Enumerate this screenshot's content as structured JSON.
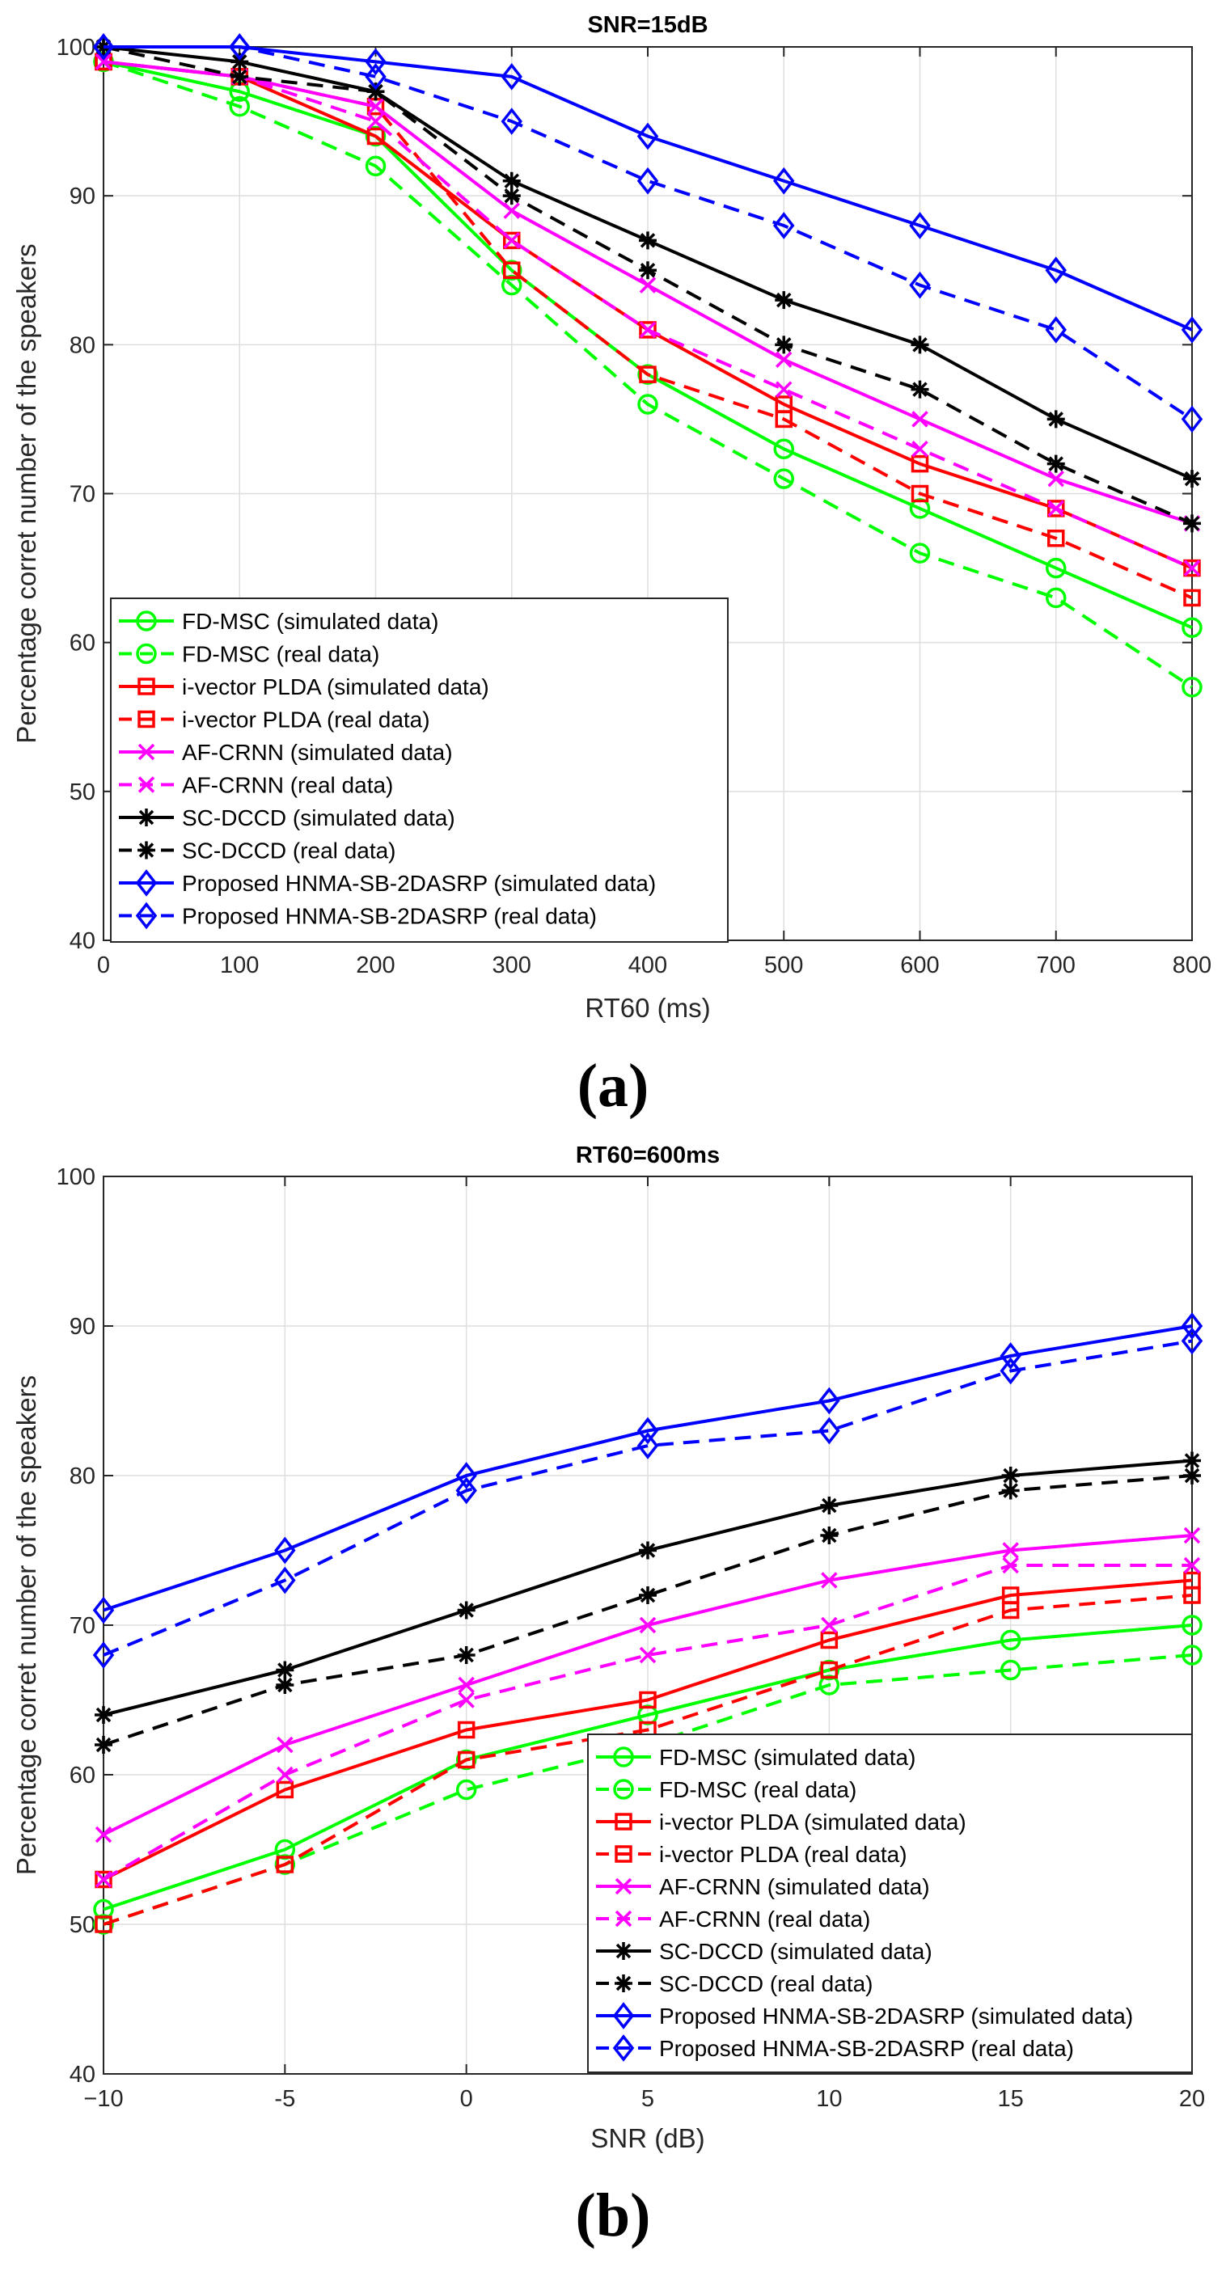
{
  "chart_data": [
    {
      "type": "line",
      "title": "SNR=15dB",
      "xlabel": "RT60 (ms)",
      "ylabel": "Percentage corret number of the speakers",
      "caption": "(a)",
      "xlim": [
        0,
        800
      ],
      "ylim": [
        40,
        100
      ],
      "grid": true,
      "legend_position": "bottom-left",
      "xticks": [
        0,
        100,
        200,
        300,
        400,
        500,
        600,
        700,
        800
      ],
      "xtick_labels": [
        "0",
        "100",
        "200",
        "300",
        "400",
        "500",
        "600",
        "700",
        "800"
      ],
      "yticks": [
        40,
        50,
        60,
        70,
        80,
        90,
        100
      ],
      "ytick_labels": [
        "40",
        "50",
        "60",
        "70",
        "80",
        "90",
        "100"
      ],
      "x": [
        0,
        100,
        200,
        300,
        400,
        500,
        600,
        700,
        800
      ],
      "series": [
        {
          "name": "FD-MSC (simulated data)",
          "color": "#00ff00",
          "dash": "solid",
          "marker": "circle",
          "values": [
            99,
            97,
            94,
            85,
            78,
            73,
            69,
            65,
            61
          ]
        },
        {
          "name": "FD-MSC (real data)",
          "color": "#00ff00",
          "dash": "dashed",
          "marker": "circle",
          "values": [
            99,
            96,
            92,
            84,
            76,
            71,
            66,
            63,
            57
          ]
        },
        {
          "name": "i-vector PLDA (simulated data)",
          "color": "#ff0000",
          "dash": "solid",
          "marker": "square",
          "values": [
            99,
            98,
            94,
            87,
            81,
            76,
            72,
            69,
            65
          ]
        },
        {
          "name": "i-vector PLDA (real data)",
          "color": "#ff0000",
          "dash": "dashed",
          "marker": "square",
          "values": [
            99,
            98,
            96,
            85,
            78,
            75,
            70,
            67,
            63
          ]
        },
        {
          "name": "AF-CRNN (simulated data)",
          "color": "#ff00ff",
          "dash": "solid",
          "marker": "x",
          "values": [
            99,
            98,
            96,
            89,
            84,
            79,
            75,
            71,
            68
          ]
        },
        {
          "name": "AF-CRNN (real data)",
          "color": "#ff00ff",
          "dash": "dashed",
          "marker": "x",
          "values": [
            99,
            98,
            95,
            87,
            81,
            77,
            73,
            69,
            65
          ]
        },
        {
          "name": "SC-DCCD (simulated data)",
          "color": "#000000",
          "dash": "solid",
          "marker": "star",
          "values": [
            100,
            99,
            97,
            91,
            87,
            83,
            80,
            75,
            71
          ]
        },
        {
          "name": "SC-DCCD (real data)",
          "color": "#000000",
          "dash": "dashed",
          "marker": "star",
          "values": [
            100,
            98,
            97,
            90,
            85,
            80,
            77,
            72,
            68
          ]
        },
        {
          "name": "Proposed HNMA-SB-2DASRP (simulated data)",
          "color": "#0000ff",
          "dash": "solid",
          "marker": "diamond",
          "values": [
            100,
            100,
            99,
            98,
            94,
            91,
            88,
            85,
            81
          ]
        },
        {
          "name": "Proposed HNMA-SB-2DASRP (real data)",
          "color": "#0000ff",
          "dash": "dashed",
          "marker": "diamond",
          "values": [
            100,
            100,
            98,
            95,
            91,
            88,
            84,
            81,
            75
          ]
        }
      ]
    },
    {
      "type": "line",
      "title": "RT60=600ms",
      "xlabel": "SNR (dB)",
      "ylabel": "Percentage corret number of the speakers",
      "caption": "(b)",
      "xlim": [
        -10,
        20
      ],
      "ylim": [
        40,
        100
      ],
      "grid": true,
      "legend_position": "bottom-right",
      "xticks": [
        -10,
        -5,
        0,
        5,
        10,
        15,
        20
      ],
      "xtick_labels": [
        "−10",
        "-5",
        "0",
        "5",
        "10",
        "15",
        "20"
      ],
      "yticks": [
        40,
        50,
        60,
        70,
        80,
        90,
        100
      ],
      "ytick_labels": [
        "40",
        "50",
        "60",
        "70",
        "80",
        "90",
        "100"
      ],
      "x": [
        -10,
        -5,
        0,
        5,
        10,
        15,
        20
      ],
      "series": [
        {
          "name": "FD-MSC (simulated data)",
          "color": "#00ff00",
          "dash": "solid",
          "marker": "circle",
          "values": [
            51,
            55,
            61,
            64,
            67,
            69,
            70
          ]
        },
        {
          "name": "FD-MSC (real data)",
          "color": "#00ff00",
          "dash": "dashed",
          "marker": "circle",
          "values": [
            50,
            54,
            59,
            62,
            66,
            67,
            68
          ]
        },
        {
          "name": "i-vector PLDA (simulated data)",
          "color": "#ff0000",
          "dash": "solid",
          "marker": "square",
          "values": [
            53,
            59,
            63,
            65,
            69,
            72,
            73
          ]
        },
        {
          "name": "i-vector PLDA (real data)",
          "color": "#ff0000",
          "dash": "dashed",
          "marker": "square",
          "values": [
            50,
            54,
            61,
            63,
            67,
            71,
            72
          ]
        },
        {
          "name": "AF-CRNN (simulated data)",
          "color": "#ff00ff",
          "dash": "solid",
          "marker": "x",
          "values": [
            56,
            62,
            66,
            70,
            73,
            75,
            76
          ]
        },
        {
          "name": "AF-CRNN (real data)",
          "color": "#ff00ff",
          "dash": "dashed",
          "marker": "x",
          "values": [
            53,
            60,
            65,
            68,
            70,
            74,
            74
          ]
        },
        {
          "name": "SC-DCCD (simulated data)",
          "color": "#000000",
          "dash": "solid",
          "marker": "star",
          "values": [
            64,
            67,
            71,
            75,
            78,
            80,
            81
          ]
        },
        {
          "name": "SC-DCCD (real data)",
          "color": "#000000",
          "dash": "dashed",
          "marker": "star",
          "values": [
            62,
            66,
            68,
            72,
            76,
            79,
            80
          ]
        },
        {
          "name": "Proposed HNMA-SB-2DASRP (simulated data)",
          "color": "#0000ff",
          "dash": "solid",
          "marker": "diamond",
          "values": [
            71,
            75,
            80,
            83,
            85,
            88,
            90
          ]
        },
        {
          "name": "Proposed HNMA-SB-2DASRP (real data)",
          "color": "#0000ff",
          "dash": "dashed",
          "marker": "diamond",
          "values": [
            68,
            73,
            79,
            82,
            83,
            87,
            89
          ]
        }
      ]
    }
  ]
}
